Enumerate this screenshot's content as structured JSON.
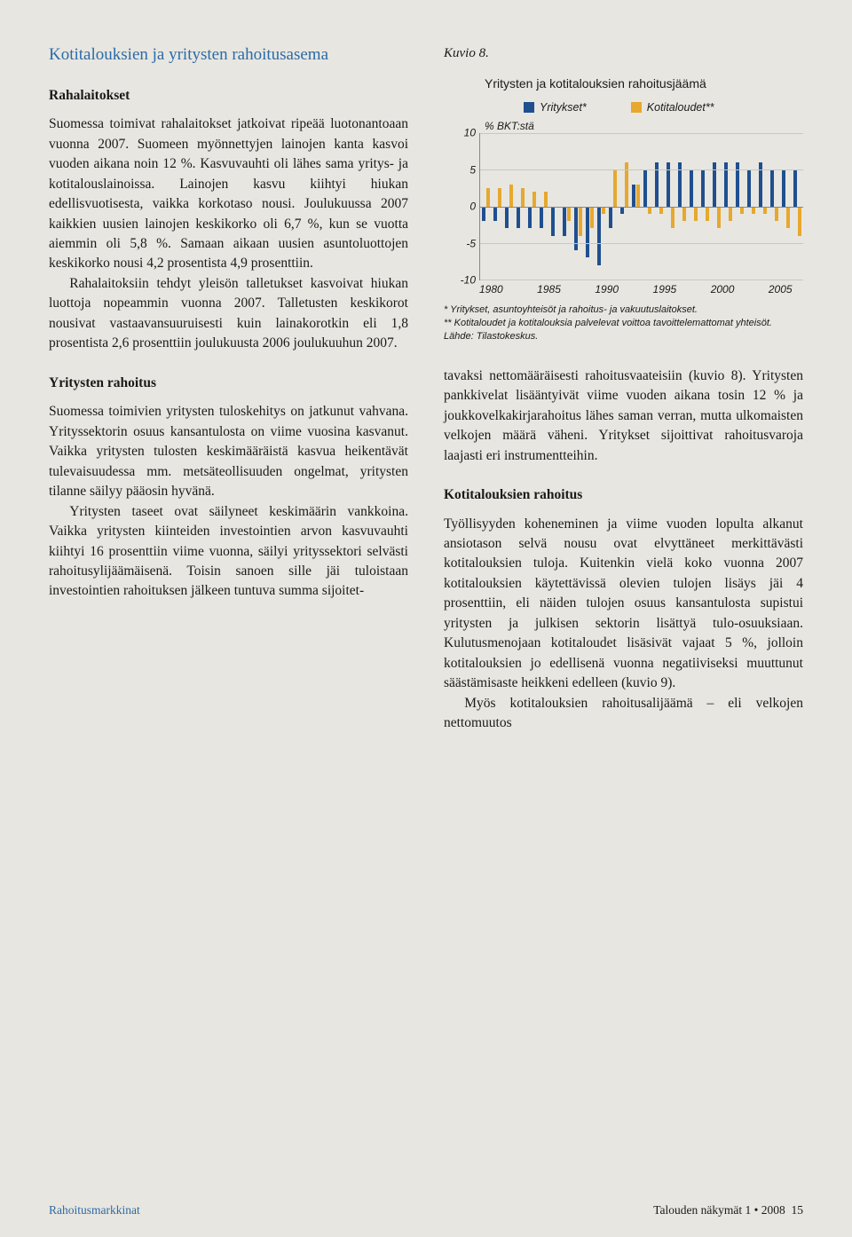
{
  "left": {
    "section_title": "Kotitalouksien ja yritysten rahoitusasema",
    "sub1": "Rahalaitokset",
    "p1": "Suomessa toimivat rahalaitokset jatkoivat ripeää luotonantoaan vuonna 2007. Suomeen myönnettyjen lainojen kanta kasvoi vuoden aikana noin 12 %. Kasvuvauhti oli lähes sama yritys- ja kotitalouslainoissa. Lainojen kasvu kiihtyi hiukan edellisvuotisesta, vaikka korkotaso nousi. Joulukuussa 2007 kaikkien uusien lainojen keskikorko oli 6,7 %, kun se vuotta aiemmin oli 5,8 %. Samaan aikaan uusien asuntoluottojen keskikorko nousi 4,2 prosentista 4,9 prosenttiin.",
    "p2": "Rahalaitoksiin tehdyt yleisön talletukset kasvoivat hiukan luottoja nopeammin vuonna 2007. Talletusten keskikorot nousivat vastaavansuuruisesti kuin lainakorotkin eli 1,8 prosentista 2,6 prosenttiin joulukuusta 2006 joulukuuhun 2007.",
    "sub2": "Yritysten rahoitus",
    "p3": "Suomessa toimivien yritysten tuloskehitys on jatkunut vahvana. Yrityssektorin osuus kansantulosta on viime vuosina kasvanut. Vaikka yritysten tulosten keskimääräistä kasvua heikentävät tulevaisuudessa mm. metsäteollisuuden ongelmat, yritysten tilanne säilyy pääosin hyvänä.",
    "p4": "Yritysten taseet ovat säilyneet keskimäärin vankkoina. Vaikka yritysten kiinteiden investointien arvon kasvuvauhti kiihtyi 16 prosenttiin viime vuonna, säilyi yrityssektori selvästi rahoitusylijäämäisenä. Toisin sanoen sille jäi tuloistaan investointien rahoituksen jälkeen tuntuva summa sijoitet-"
  },
  "right": {
    "figure_label": "Kuvio 8.",
    "rp1": "tavaksi nettomääräisesti rahoitusvaateisiin (kuvio 8). Yritysten pankkivelat lisääntyivät viime vuoden aikana tosin 12 % ja joukkovelkakirjarahoitus lähes saman verran, mutta ulkomaisten velkojen määrä väheni. Yritykset sijoittivat rahoitusvaroja laajasti eri instrumentteihin.",
    "sub3": "Kotitalouksien rahoitus",
    "rp2": "Työllisyyden koheneminen ja viime vuoden lopulta alkanut ansiotason selvä nousu ovat elvyttäneet merkittävästi kotitalouksien tuloja. Kuitenkin vielä koko vuonna 2007 kotitalouksien käytettävissä olevien tulojen lisäys jäi 4 prosenttiin, eli näiden tulojen osuus kansantulosta supistui yritysten ja julkisen sektorin lisättyä tulo-osuuksiaan. Kulutusmenojaan kotitaloudet lisäsivät vajaat 5 %, jolloin kotitalouksien jo edellisenä vuonna negatiiviseksi muuttunut säästämisaste heikkeni edelleen (kuvio 9).",
    "rp3": "Myös kotitalouksien rahoitusalijäämä – eli velkojen nettomuutos"
  },
  "chart": {
    "title": "Yritysten ja kotitalouksien rahoitusjäämä",
    "series_a_name": "Yritykset*",
    "series_b_name": "Kotitaloudet**",
    "series_a_color": "#1f4f8f",
    "series_b_color": "#e6a82e",
    "y_label": "% BKT:stä",
    "ylim": [
      -10,
      10
    ],
    "ytick_step": 5,
    "yticks": [
      -10,
      -5,
      0,
      5,
      10
    ],
    "x_labels": [
      1980,
      1985,
      1990,
      1995,
      2000,
      2005
    ],
    "x_start": 1980,
    "x_end": 2007,
    "years": [
      1980,
      1981,
      1982,
      1983,
      1984,
      1985,
      1986,
      1987,
      1988,
      1989,
      1990,
      1991,
      1992,
      1993,
      1994,
      1995,
      1996,
      1997,
      1998,
      1999,
      2000,
      2001,
      2002,
      2003,
      2004,
      2005,
      2006,
      2007
    ],
    "a": [
      -2,
      -2,
      -3,
      -3,
      -3,
      -3,
      -4,
      -4,
      -6,
      -7,
      -8,
      -3,
      -1,
      3,
      5,
      6,
      6,
      6,
      5,
      5,
      6,
      6,
      6,
      5,
      6,
      5,
      5,
      5
    ],
    "b": [
      2.5,
      2.5,
      3,
      2.5,
      2,
      2,
      0,
      -2,
      -4,
      -3,
      -1,
      5,
      6,
      3,
      -1,
      -1,
      -3,
      -2,
      -2,
      -2,
      -3,
      -2,
      -1,
      -1,
      -1,
      -2,
      -3,
      -4
    ],
    "grid_color": "#c8c8c0",
    "background": "#e8e6e0",
    "footnote1": "* Yritykset, asuntoyhteisöt ja rahoitus- ja vakuutuslaitokset.",
    "footnote2": "** Kotitaloudet ja kotitalouksia palvelevat voittoa tavoittelemattomat yhteisöt.",
    "footnote3": "Lähde: Tilastokeskus."
  },
  "footer": {
    "left": "Rahoitusmarkkinat",
    "right_text": "Talouden näkymät 1 • 2008",
    "page_num": "15"
  }
}
